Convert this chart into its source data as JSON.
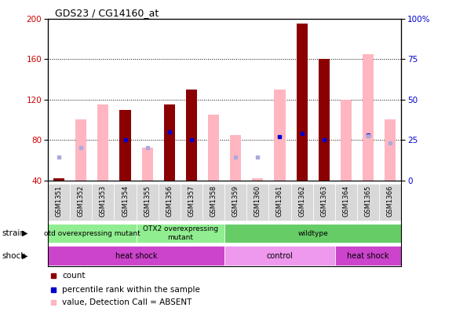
{
  "title": "GDS23 / CG14160_at",
  "samples": [
    "GSM1351",
    "GSM1352",
    "GSM1353",
    "GSM1354",
    "GSM1355",
    "GSM1356",
    "GSM1357",
    "GSM1358",
    "GSM1359",
    "GSM1360",
    "GSM1361",
    "GSM1362",
    "GSM1363",
    "GSM1364",
    "GSM1365",
    "GSM1366"
  ],
  "count_values": [
    42,
    0,
    0,
    110,
    0,
    115,
    130,
    0,
    0,
    0,
    0,
    195,
    160,
    0,
    0,
    0
  ],
  "pink_values": [
    42,
    100,
    115,
    0,
    72,
    0,
    0,
    105,
    85,
    42,
    130,
    0,
    0,
    120,
    165,
    100
  ],
  "blue_sq_left": [
    0,
    0,
    0,
    80,
    0,
    88,
    80,
    0,
    0,
    0,
    83,
    86,
    80,
    0,
    85,
    0
  ],
  "light_blue_sq_left": [
    63,
    72,
    0,
    0,
    72,
    0,
    0,
    0,
    63,
    63,
    0,
    0,
    0,
    0,
    84,
    77
  ],
  "ylim_left": [
    40,
    200
  ],
  "ylim_right": [
    0,
    100
  ],
  "yticks_left": [
    40,
    80,
    120,
    160,
    200
  ],
  "yticks_right": [
    0,
    25,
    50,
    75,
    100
  ],
  "dark_red": "#8B0000",
  "pink": "#FFB6C1",
  "pink_light": "#FFCCCC",
  "blue_sq": "#0000CD",
  "light_blue_sq": "#AAAADD",
  "left_tick_color": "#CC0000",
  "right_tick_color": "#0000CC",
  "strain_groups": [
    {
      "label": "otd overexpressing mutant",
      "start": 0,
      "end": 4,
      "color": "#90EE90"
    },
    {
      "label": "OTX2 overexpressing\nmutant",
      "start": 4,
      "end": 8,
      "color": "#90EE90"
    },
    {
      "label": "wildtype",
      "start": 8,
      "end": 16,
      "color": "#66CC66"
    }
  ],
  "shock_groups": [
    {
      "label": "heat shock",
      "start": 0,
      "end": 8,
      "color": "#CC44CC"
    },
    {
      "label": "control",
      "start": 8,
      "end": 13,
      "color": "#EE99EE"
    },
    {
      "label": "heat shock",
      "start": 13,
      "end": 16,
      "color": "#CC44CC"
    }
  ]
}
